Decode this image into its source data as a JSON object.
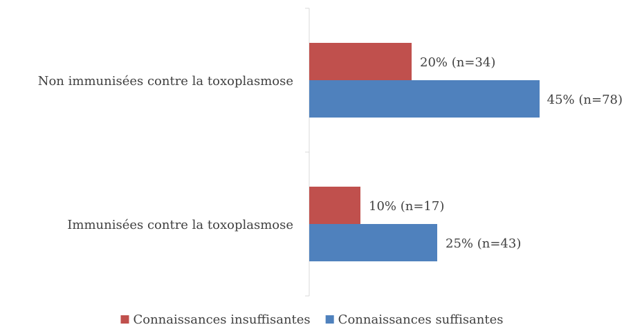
{
  "chart_data": {
    "type": "bar",
    "orientation": "horizontal",
    "categories": [
      "Non immunisées contre la toxoplasmose",
      "Immunisées contre la toxoplasmose"
    ],
    "series": [
      {
        "name": "Connaissances insuffisantes",
        "color": "#c0504d",
        "values": [
          20,
          10
        ],
        "value_labels": [
          "20% (n=34)",
          "10% (n=17)"
        ]
      },
      {
        "name": "Connaissances suffisantes",
        "color": "#4f81bd",
        "values": [
          45,
          25
        ],
        "value_labels": [
          "45% (n=78)",
          "25% (n=43)"
        ]
      }
    ],
    "xlim": [
      0,
      60
    ],
    "legend": "bottom"
  }
}
